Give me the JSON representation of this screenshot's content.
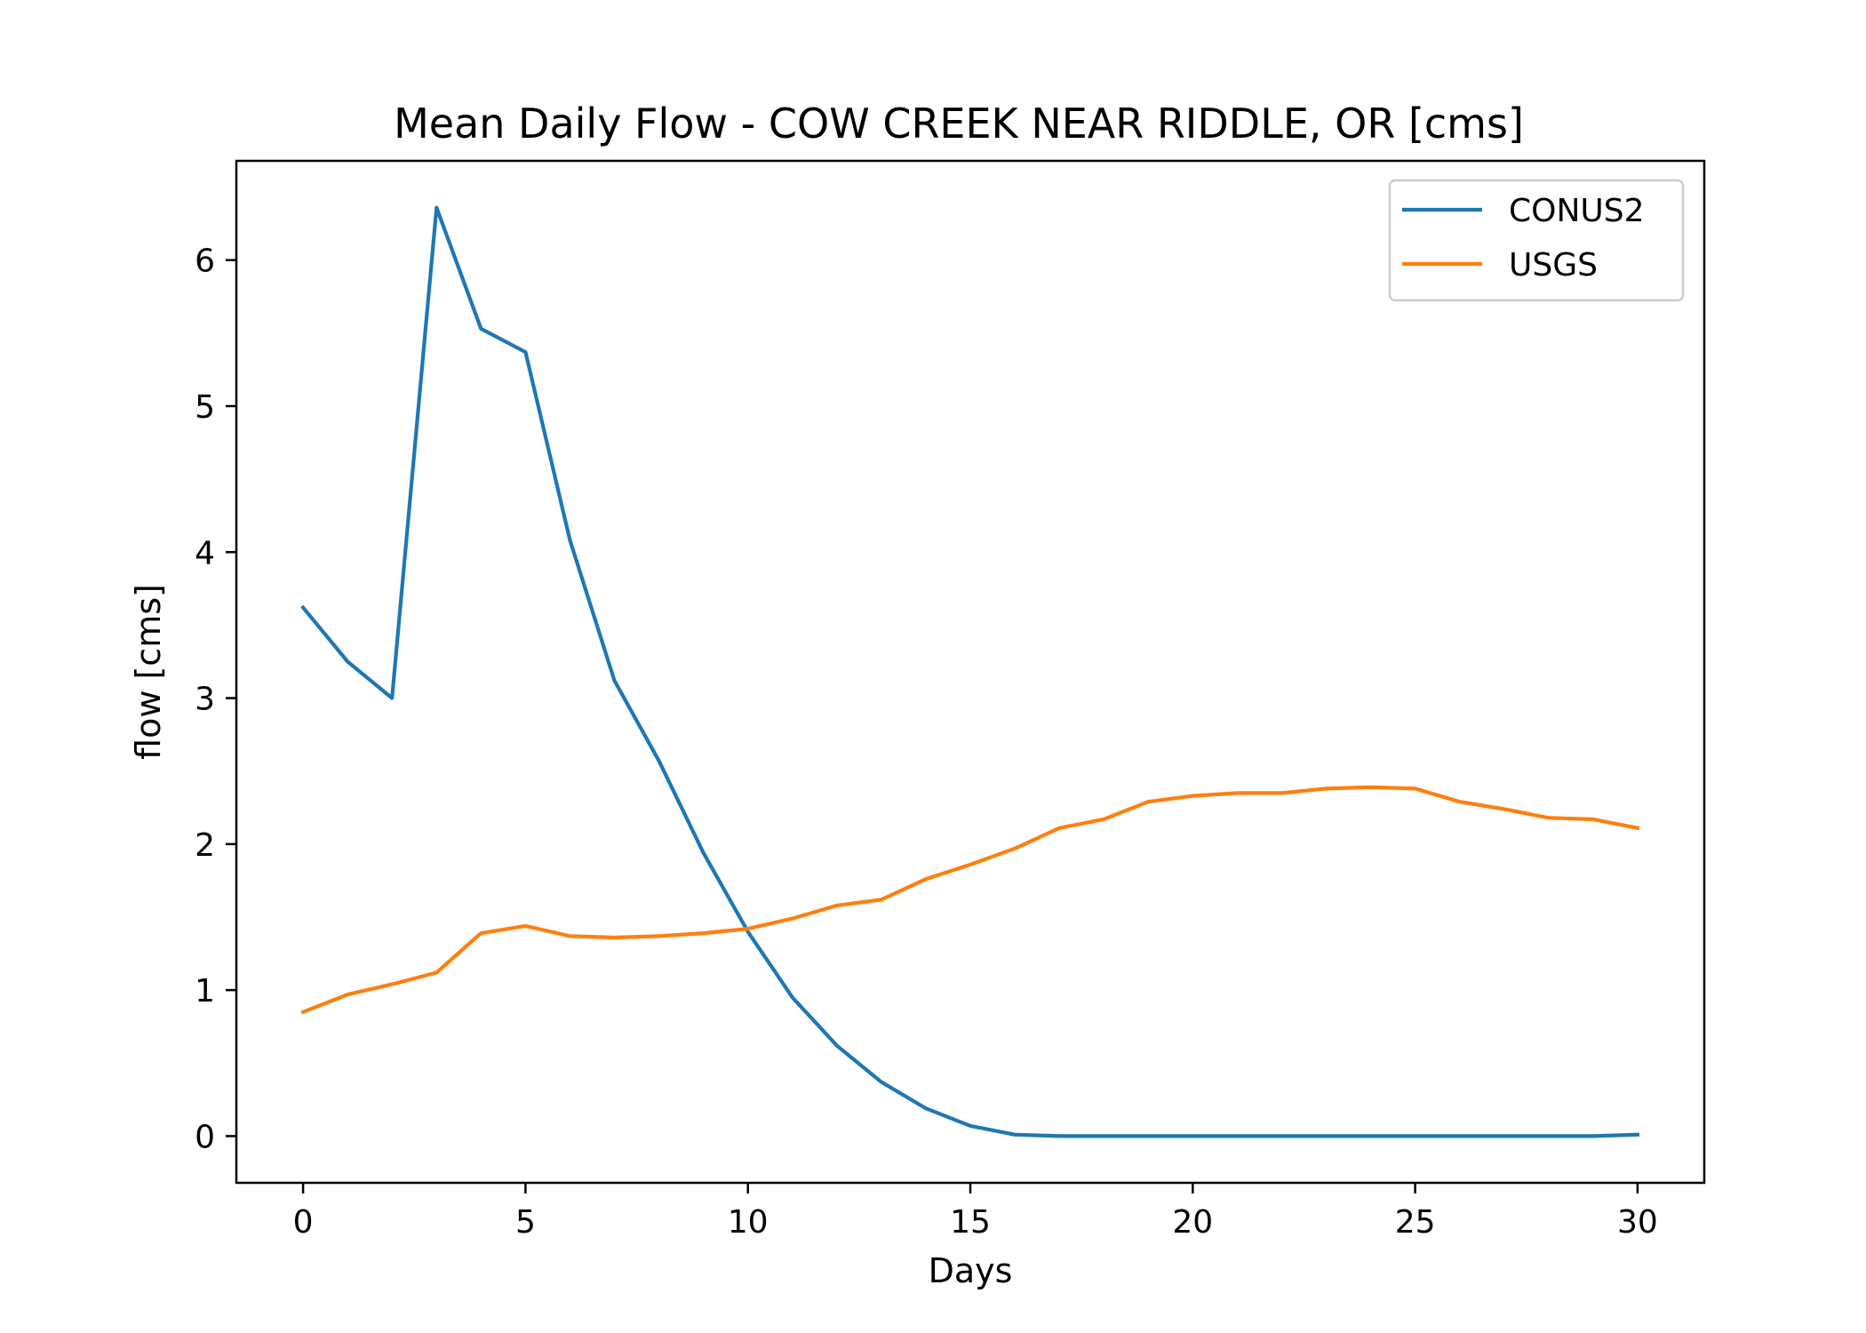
{
  "chart_data": {
    "type": "line",
    "title": "Mean Daily Flow - COW CREEK NEAR RIDDLE, OR [cms]",
    "xlabel": "Days",
    "ylabel": "flow [cms]",
    "xlim": [
      -1.5,
      31.5
    ],
    "ylim": [
      -0.32,
      6.68
    ],
    "xticks": [
      0,
      5,
      10,
      15,
      20,
      25,
      30
    ],
    "yticks": [
      0,
      1,
      2,
      3,
      4,
      5,
      6
    ],
    "grid": false,
    "legend_position": "top-right",
    "x": [
      0,
      1,
      2,
      3,
      4,
      5,
      6,
      7,
      8,
      9,
      10,
      11,
      12,
      13,
      14,
      15,
      16,
      17,
      18,
      19,
      20,
      21,
      22,
      23,
      24,
      25,
      26,
      27,
      28,
      29,
      30
    ],
    "series": [
      {
        "name": "CONUS2",
        "color": "#1f77b4",
        "values": [
          3.62,
          3.25,
          3.0,
          6.36,
          5.53,
          5.37,
          4.08,
          3.12,
          2.57,
          1.94,
          1.4,
          0.95,
          0.62,
          0.37,
          0.19,
          0.07,
          0.01,
          0.0,
          0.0,
          0.0,
          0.0,
          0.0,
          0.0,
          0.0,
          0.0,
          0.0,
          0.0,
          0.0,
          0.0,
          0.0,
          0.01
        ]
      },
      {
        "name": "USGS",
        "color": "#ff7f0e",
        "values": [
          0.85,
          0.97,
          1.04,
          1.12,
          1.39,
          1.44,
          1.37,
          1.36,
          1.37,
          1.39,
          1.42,
          1.49,
          1.58,
          1.62,
          1.76,
          1.86,
          1.97,
          2.11,
          2.17,
          2.29,
          2.33,
          2.35,
          2.35,
          2.38,
          2.39,
          2.38,
          2.29,
          2.24,
          2.18,
          2.17,
          2.11
        ]
      }
    ]
  }
}
